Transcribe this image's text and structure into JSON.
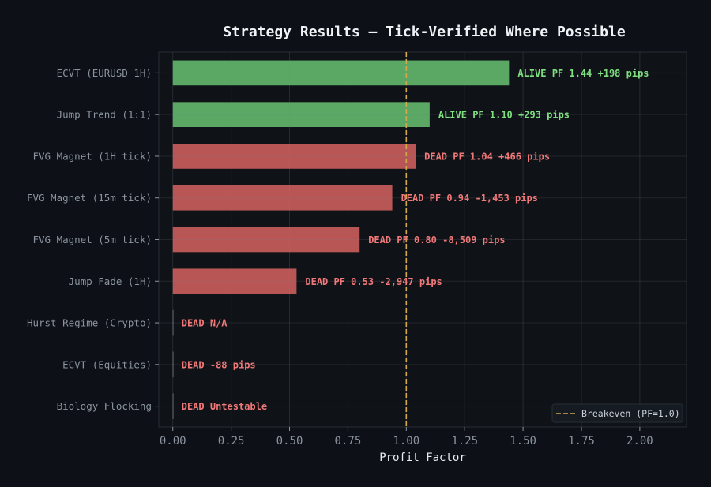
{
  "chart_data": {
    "type": "bar",
    "orientation": "horizontal",
    "title": "Strategy Results — Tick-Verified Where Possible",
    "xlabel": "Profit Factor",
    "ylabel": "",
    "xlim": [
      -0.06,
      2.2
    ],
    "xticks": [
      "0.00",
      "0.25",
      "0.50",
      "0.75",
      "1.00",
      "1.25",
      "1.50",
      "1.75",
      "2.00"
    ],
    "grid": true,
    "categories": [
      "ECVT (EURUSD 1H)",
      "Jump Trend (1:1)",
      "FVG Magnet (1H tick)",
      "FVG Magnet (15m tick)",
      "FVG Magnet (5m tick)",
      "Jump Fade (1H)",
      "Hurst Regime (Crypto)",
      "ECVT (Equities)",
      "Biology Flocking"
    ],
    "values": [
      1.44,
      1.1,
      1.04,
      0.94,
      0.8,
      0.53,
      0,
      0,
      0
    ],
    "status": [
      "alive",
      "alive",
      "dead",
      "dead",
      "dead",
      "dead",
      "dead",
      "dead",
      "dead"
    ],
    "data_labels": [
      "ALIVE  PF 1.44  +198 pips",
      "ALIVE  PF 1.10  +293 pips",
      "DEAD  PF 1.04  +466 pips",
      "DEAD  PF 0.94  -1,453 pips",
      "DEAD  PF 0.80  -8,509 pips",
      "DEAD  PF 0.53  -2,947 pips",
      "DEAD  N/A",
      "DEAD  -88 pips",
      "DEAD  Untestable"
    ],
    "reference_line": {
      "x": 1.0,
      "label": "Breakeven (PF=1.0)",
      "style": "dashed",
      "color": "#d4a94a"
    },
    "legend": {
      "position": "bottom-right",
      "entries": [
        "Breakeven (PF=1.0)"
      ]
    },
    "colors": {
      "alive_bar": "#5aa864",
      "dead_bar": "#b85656",
      "alive_text": "#7ee07e",
      "dead_text": "#f07878",
      "background": "#0d1117"
    }
  }
}
